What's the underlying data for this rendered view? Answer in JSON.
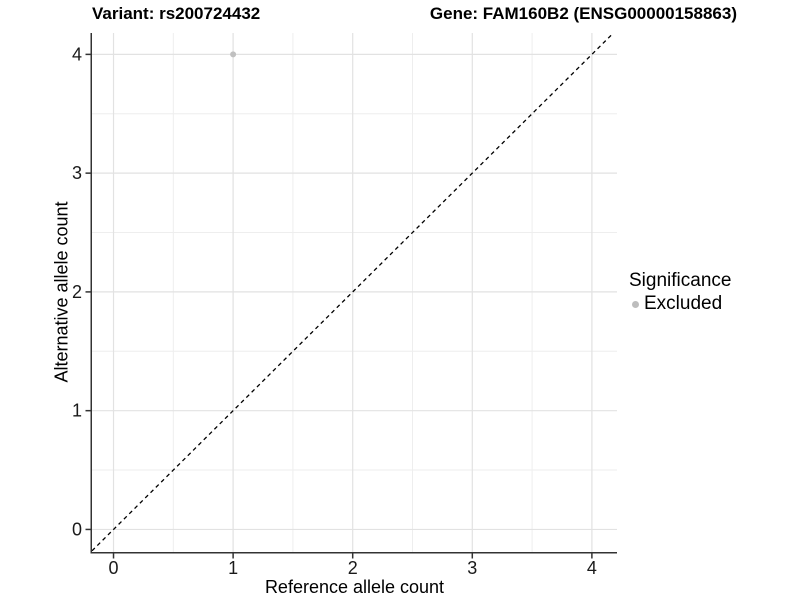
{
  "header": {
    "variant_title": "Variant: rs200724432",
    "gene_title": "Gene: FAM160B2 (ENSG00000158863)"
  },
  "chart_data": {
    "type": "scatter",
    "xlabel": "Reference allele count",
    "ylabel": "Alternative allele count",
    "xlim": [
      -0.18,
      4.21
    ],
    "ylim": [
      -0.19,
      4.18
    ],
    "x_ticks": [
      0,
      1,
      2,
      3,
      4
    ],
    "y_ticks": [
      0,
      1,
      2,
      3,
      4
    ],
    "x_minor_ticks": [
      0.5,
      1.5,
      2.5,
      3.5
    ],
    "y_minor_ticks": [
      0.5,
      1.5,
      2.5,
      3.5
    ],
    "grid": true,
    "legend_position": "right",
    "series": [
      {
        "name": "Excluded",
        "color": "#c0c0c0",
        "marker": "circle",
        "points": [
          {
            "x": 1,
            "y": 4
          }
        ]
      }
    ],
    "reference_line": {
      "type": "identity",
      "equation": "y = x",
      "style": "dashed",
      "color": "#000000"
    }
  },
  "legend": {
    "title": "Significance",
    "items": [
      {
        "label": "Excluded",
        "color": "#bdbdbd",
        "marker": "circle"
      }
    ]
  },
  "colors": {
    "background": "#ffffff",
    "panel_background": "#ffffff",
    "grid_major": "#e2e2e2",
    "grid_minor": "#eeeeee",
    "axis_line": "#333333",
    "tick_text": "#1a1a1a",
    "title_text": "#000000"
  }
}
